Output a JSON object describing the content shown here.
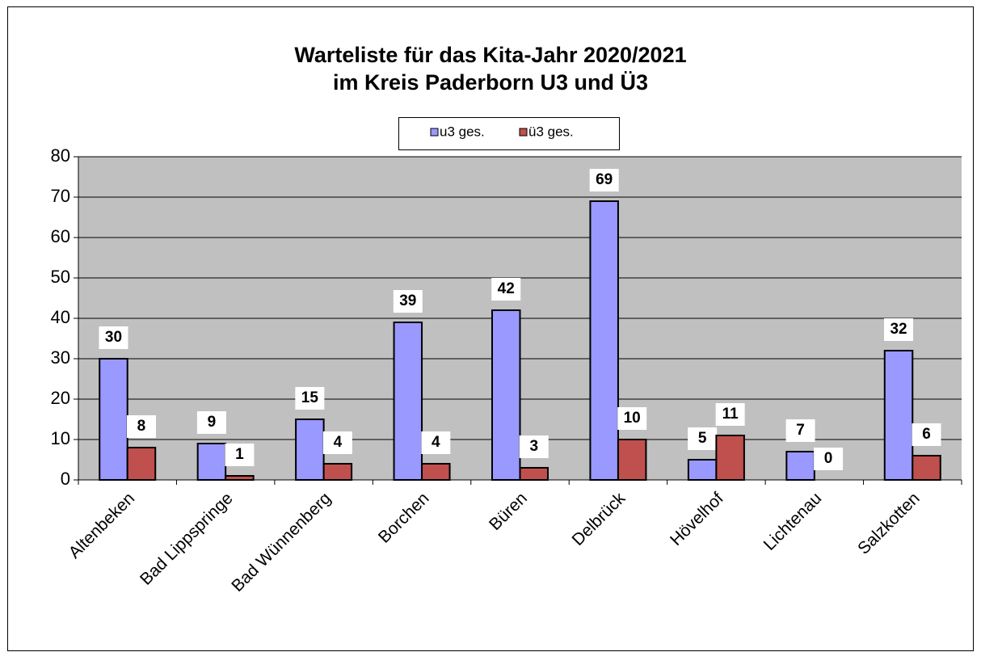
{
  "chart_data": {
    "type": "bar",
    "title": "Warteliste für das Kita-Jahr 2020/2021",
    "subtitle": "im Kreis Paderborn U3 und Ü3",
    "categories": [
      "Altenbeken",
      "Bad Lippspringe",
      "Bad Wünnenberg",
      "Borchen",
      "Büren",
      "Delbrück",
      "Hövelhof",
      "Lichtenau",
      "Salzkotten"
    ],
    "series": [
      {
        "name": "u3 ges.",
        "color": "#9999ff",
        "values": [
          30,
          9,
          15,
          39,
          42,
          69,
          5,
          7,
          32
        ]
      },
      {
        "name": "ü3 ges.",
        "color": "#c0504d",
        "values": [
          8,
          1,
          4,
          4,
          3,
          10,
          11,
          0,
          6
        ]
      }
    ],
    "ylim": [
      0,
      80
    ],
    "yticks": [
      0,
      10,
      20,
      30,
      40,
      50,
      60,
      70,
      80
    ],
    "grid": true,
    "legend": "top"
  }
}
